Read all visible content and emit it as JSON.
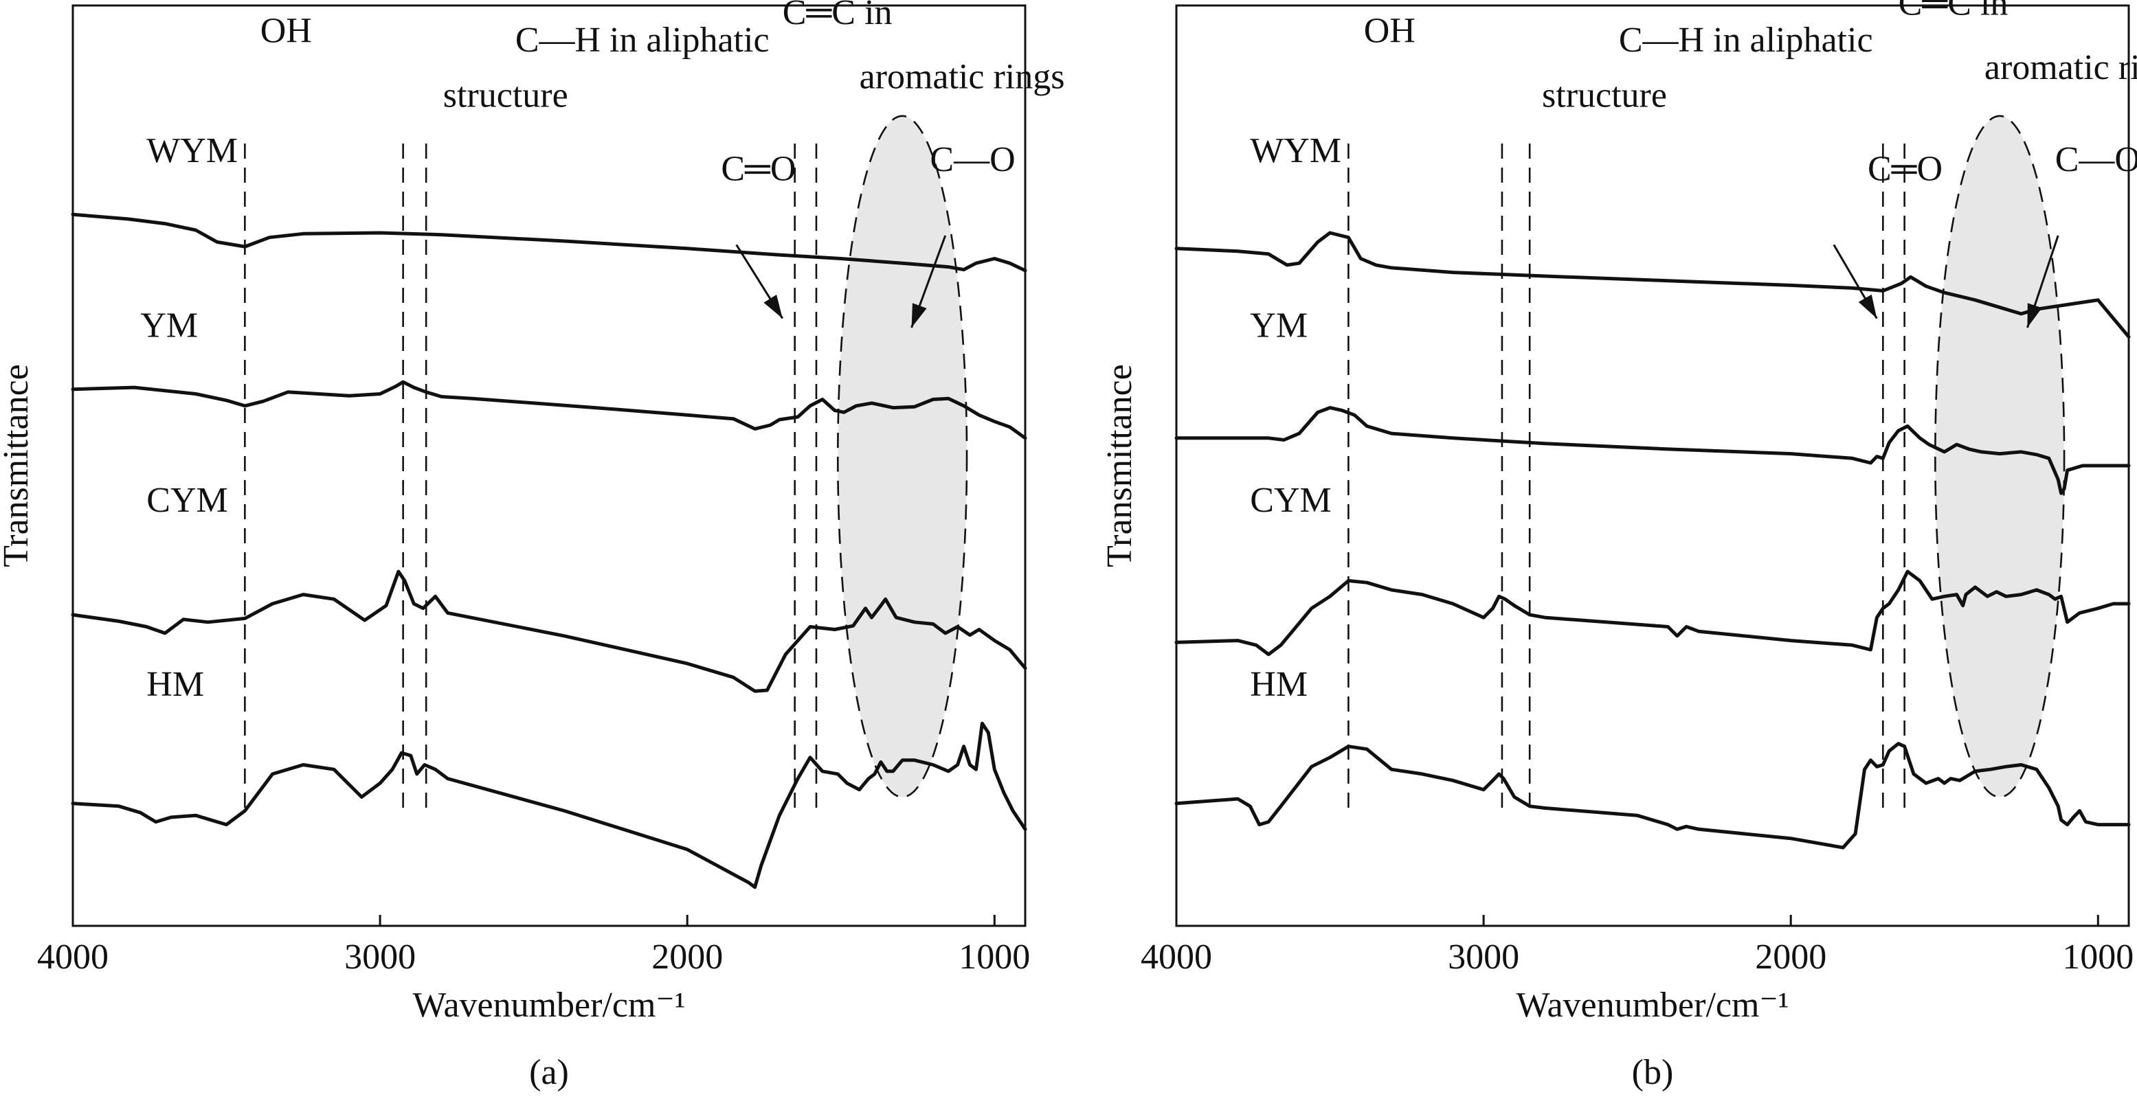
{
  "chart_data": [
    {
      "type": "line",
      "panel_label": "(a)",
      "xlabel": "Wavenumber/cm⁻¹",
      "ylabel": "Transmittance",
      "xlim": [
        4000,
        900
      ],
      "ylim": [
        0,
        100
      ],
      "x_reversed": true,
      "yticks_shown": false,
      "grid": false,
      "xticks": [
        4000,
        3000,
        2000,
        1000
      ],
      "band_guides": [
        3440,
        2925,
        2850,
        1650,
        1580
      ],
      "band_labels": [
        {
          "text": "OH",
          "x": 3390,
          "y": 96
        },
        {
          "text": "C—H in aliphatic",
          "x": 2560,
          "y": 95
        },
        {
          "text": "structure",
          "x": 2795,
          "y": 89
        },
        {
          "text": "C═C in",
          "x": 1690,
          "y": 98
        },
        {
          "text": "aromatic rings",
          "x": 1440,
          "y": 91
        },
        {
          "text": "C═O",
          "x": 1890,
          "y": 81
        },
        {
          "text": "C—O",
          "x": 1210,
          "y": 82
        }
      ],
      "arrows": [
        {
          "from": [
            1840,
            74
          ],
          "to": [
            1690,
            66
          ]
        },
        {
          "from": [
            1160,
            75
          ],
          "to": [
            1270,
            65
          ]
        }
      ],
      "highlight_region": {
        "x_center": 1300,
        "x_half_width": 210,
        "y_center": 51,
        "y_half_height": 37
      },
      "series": [
        {
          "name": "WYM",
          "label_pos": {
            "x": 3760,
            "y": 83
          },
          "x": [
            4000,
            3820,
            3700,
            3600,
            3530,
            3440,
            3360,
            3250,
            3000,
            2800,
            2400,
            2000,
            1700,
            1500,
            1300,
            1150,
            1100,
            1060,
            1000,
            950,
            900
          ],
          "y": [
            77.3,
            76.8,
            76.3,
            75.6,
            74.3,
            73.8,
            74.8,
            75.2,
            75.3,
            75.1,
            74.4,
            73.6,
            72.9,
            72.5,
            72.0,
            71.6,
            71.3,
            72.0,
            72.5,
            72.0,
            71.2
          ]
        },
        {
          "name": "YM",
          "label_pos": {
            "x": 3780,
            "y": 64
          },
          "x": [
            4000,
            3800,
            3600,
            3500,
            3440,
            3380,
            3300,
            3100,
            3000,
            2950,
            2925,
            2890,
            2850,
            2800,
            2700,
            2300,
            2000,
            1850,
            1780,
            1730,
            1700,
            1640,
            1600,
            1560,
            1520,
            1490,
            1450,
            1400,
            1330,
            1260,
            1200,
            1150,
            1100,
            1050,
            1000,
            950,
            900
          ],
          "y": [
            58.3,
            58.5,
            57.8,
            57.1,
            56.5,
            57.0,
            58.0,
            57.6,
            57.8,
            58.6,
            59.1,
            58.5,
            58.0,
            57.5,
            57.3,
            56.3,
            55.5,
            55.1,
            54.0,
            54.4,
            55.0,
            55.3,
            56.5,
            57.2,
            56.0,
            55.8,
            56.5,
            56.8,
            56.3,
            56.4,
            57.2,
            57.3,
            56.5,
            55.5,
            54.8,
            54.2,
            53.0
          ]
        },
        {
          "name": "CYM",
          "label_pos": {
            "x": 3760,
            "y": 45
          },
          "x": [
            4000,
            3850,
            3760,
            3700,
            3640,
            3560,
            3440,
            3350,
            3250,
            3150,
            3050,
            2980,
            2940,
            2920,
            2890,
            2860,
            2820,
            2780,
            2400,
            2000,
            1850,
            1780,
            1740,
            1680,
            1600,
            1520,
            1460,
            1420,
            1400,
            1370,
            1355,
            1320,
            1260,
            1200,
            1160,
            1120,
            1080,
            1050,
            1000,
            950,
            900
          ],
          "y": [
            33.8,
            33.1,
            32.5,
            31.8,
            33.3,
            33.0,
            33.4,
            35.0,
            36.0,
            35.5,
            33.2,
            34.8,
            38.5,
            37.5,
            35.0,
            34.5,
            35.8,
            34.0,
            31.5,
            28.5,
            27.0,
            25.5,
            25.6,
            29.5,
            32.5,
            32.2,
            32.6,
            34.5,
            33.5,
            34.8,
            35.5,
            33.5,
            33.0,
            32.8,
            31.8,
            32.5,
            31.6,
            32.2,
            31.0,
            30.0,
            28.0
          ]
        },
        {
          "name": "HM",
          "label_pos": {
            "x": 3760,
            "y": 25
          },
          "x": [
            4000,
            3850,
            3780,
            3730,
            3680,
            3600,
            3500,
            3440,
            3350,
            3250,
            3150,
            3060,
            3000,
            2960,
            2930,
            2900,
            2880,
            2855,
            2820,
            2780,
            2400,
            2000,
            1800,
            1780,
            1760,
            1700,
            1640,
            1600,
            1560,
            1510,
            1480,
            1440,
            1410,
            1390,
            1370,
            1350,
            1330,
            1300,
            1260,
            1200,
            1150,
            1120,
            1100,
            1080,
            1060,
            1040,
            1020,
            1000,
            970,
            940,
            900
          ],
          "y": [
            13.3,
            13.0,
            12.3,
            11.3,
            11.8,
            12.0,
            11.0,
            12.5,
            16.5,
            17.5,
            17.0,
            14.0,
            15.5,
            17.0,
            18.8,
            18.5,
            16.5,
            17.5,
            17.0,
            16.0,
            12.5,
            8.3,
            4.7,
            4.2,
            6.5,
            12.0,
            16.0,
            18.3,
            16.8,
            16.5,
            15.5,
            14.8,
            16.0,
            16.5,
            17.8,
            16.8,
            16.8,
            18.0,
            18.0,
            17.5,
            16.8,
            17.5,
            19.5,
            17.5,
            17.0,
            22.0,
            21.0,
            17.0,
            14.5,
            12.5,
            10.5
          ]
        }
      ]
    },
    {
      "type": "line",
      "panel_label": "(b)",
      "xlabel": "Wavenumber/cm⁻¹",
      "ylabel": "Transmittance",
      "xlim": [
        4000,
        900
      ],
      "ylim": [
        0,
        100
      ],
      "x_reversed": true,
      "yticks_shown": false,
      "grid": false,
      "xticks": [
        4000,
        3000,
        2000,
        1000
      ],
      "band_guides": [
        3440,
        2940,
        2850,
        1700,
        1630
      ],
      "band_labels": [
        {
          "text": "OH",
          "x": 3390,
          "y": 96
        },
        {
          "text": "C—H in aliphatic",
          "x": 2560,
          "y": 95
        },
        {
          "text": "structure",
          "x": 2810,
          "y": 89
        },
        {
          "text": "C═C in",
          "x": 1650,
          "y": 99
        },
        {
          "text": "aromatic rings",
          "x": 1370,
          "y": 92
        },
        {
          "text": "C═O",
          "x": 1750,
          "y": 81
        },
        {
          "text": "C—O",
          "x": 1140,
          "y": 82
        }
      ],
      "arrows": [
        {
          "from": [
            1860,
            74
          ],
          "to": [
            1720,
            66
          ]
        },
        {
          "from": [
            1130,
            75
          ],
          "to": [
            1230,
            65
          ]
        }
      ],
      "highlight_region": {
        "x_center": 1320,
        "x_half_width": 210,
        "y_center": 51,
        "y_half_height": 37
      },
      "series": [
        {
          "name": "WYM",
          "label_pos": {
            "x": 3760,
            "y": 83
          },
          "x": [
            4000,
            3800,
            3700,
            3640,
            3600,
            3540,
            3500,
            3440,
            3400,
            3350,
            3300,
            3100,
            2800,
            2400,
            2000,
            1800,
            1700,
            1640,
            1610,
            1560,
            1500,
            1400,
            1300,
            1250,
            1200,
            1100,
            1000,
            950,
            900
          ],
          "y": [
            73.6,
            73.3,
            73.0,
            71.8,
            72.0,
            74.3,
            75.3,
            74.8,
            72.5,
            71.8,
            71.5,
            71.0,
            70.6,
            70.1,
            69.6,
            69.3,
            69.0,
            69.8,
            70.5,
            69.5,
            68.8,
            68.0,
            67.0,
            66.5,
            67.0,
            67.5,
            68.0,
            66.0,
            64.0
          ]
        },
        {
          "name": "YM",
          "label_pos": {
            "x": 3760,
            "y": 64
          },
          "x": [
            4000,
            3800,
            3700,
            3650,
            3600,
            3540,
            3500,
            3460,
            3420,
            3380,
            3300,
            3100,
            2800,
            2400,
            2000,
            1800,
            1740,
            1720,
            1700,
            1680,
            1650,
            1620,
            1580,
            1550,
            1500,
            1460,
            1420,
            1380,
            1320,
            1250,
            1200,
            1160,
            1130,
            1120,
            1110,
            1100,
            1050,
            1000,
            950,
            900
          ],
          "y": [
            53.0,
            53.0,
            53.0,
            52.8,
            53.5,
            55.8,
            56.3,
            56.0,
            55.5,
            54.3,
            53.5,
            53.0,
            52.4,
            51.8,
            51.3,
            50.8,
            50.3,
            51.0,
            50.8,
            52.5,
            53.8,
            54.3,
            53.0,
            52.3,
            51.5,
            52.3,
            51.8,
            51.5,
            51.3,
            51.5,
            51.2,
            50.8,
            48.5,
            47.0,
            47.5,
            49.5,
            50.0,
            50.0,
            50.0,
            50.0
          ]
        },
        {
          "name": "CYM",
          "label_pos": {
            "x": 3760,
            "y": 45
          },
          "x": [
            4000,
            3800,
            3740,
            3700,
            3660,
            3560,
            3500,
            3440,
            3380,
            3300,
            3200,
            3100,
            3000,
            2970,
            2950,
            2930,
            2900,
            2850,
            2800,
            2600,
            2400,
            2370,
            2340,
            2300,
            2000,
            1800,
            1740,
            1720,
            1700,
            1680,
            1650,
            1620,
            1580,
            1540,
            1500,
            1460,
            1440,
            1430,
            1400,
            1360,
            1330,
            1300,
            1250,
            1200,
            1160,
            1140,
            1120,
            1100,
            1060,
            1000,
            950,
            900
          ],
          "y": [
            30.8,
            31.0,
            30.5,
            29.5,
            30.5,
            34.5,
            35.8,
            37.5,
            37.3,
            36.5,
            36.0,
            35.0,
            33.5,
            34.5,
            35.8,
            35.5,
            34.8,
            33.8,
            33.5,
            33.0,
            32.5,
            31.5,
            32.5,
            32.0,
            31.0,
            30.5,
            30.0,
            33.5,
            34.5,
            35.0,
            36.5,
            38.5,
            37.5,
            35.5,
            35.8,
            36.0,
            34.8,
            36.0,
            36.8,
            35.8,
            36.3,
            35.8,
            36.0,
            36.5,
            36.0,
            35.5,
            35.8,
            33.0,
            34.0,
            34.5,
            35.0,
            35.0
          ]
        },
        {
          "name": "HM",
          "label_pos": {
            "x": 3760,
            "y": 25
          },
          "x": [
            4000,
            3800,
            3760,
            3730,
            3700,
            3660,
            3560,
            3500,
            3440,
            3380,
            3300,
            3200,
            3100,
            3000,
            2970,
            2950,
            2935,
            2900,
            2850,
            2800,
            2500,
            2400,
            2370,
            2340,
            2300,
            2000,
            1830,
            1790,
            1760,
            1740,
            1720,
            1700,
            1680,
            1650,
            1630,
            1600,
            1560,
            1520,
            1500,
            1480,
            1450,
            1400,
            1350,
            1300,
            1250,
            1200,
            1160,
            1130,
            1120,
            1100,
            1080,
            1060,
            1040,
            1000,
            950,
            900
          ],
          "y": [
            13.3,
            13.8,
            13.0,
            11.0,
            11.3,
            13.0,
            17.3,
            18.3,
            19.5,
            19.2,
            17.0,
            16.5,
            15.8,
            14.8,
            15.8,
            16.5,
            16.0,
            14.0,
            13.0,
            12.8,
            12.0,
            11.0,
            10.5,
            10.8,
            10.5,
            9.5,
            8.5,
            10.0,
            17.0,
            18.0,
            17.3,
            17.5,
            19.0,
            19.8,
            19.5,
            16.5,
            15.5,
            16.0,
            15.5,
            16.0,
            15.8,
            16.8,
            17.0,
            17.3,
            17.5,
            17.0,
            15.0,
            13.0,
            11.5,
            11.0,
            11.8,
            12.5,
            11.3,
            11.0,
            11.0,
            11.0
          ]
        }
      ]
    }
  ]
}
